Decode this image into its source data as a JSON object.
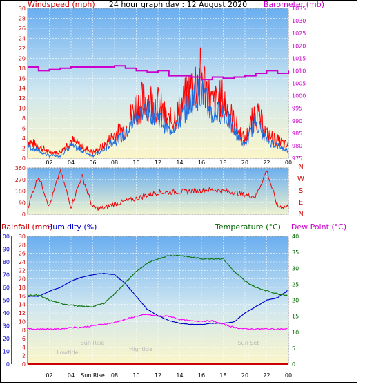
{
  "header": {
    "title": "24 hour graph day : 12 August 2020",
    "left_label": "Windspeed (mph)",
    "right_label": "Barometer (mb)"
  },
  "bottom_header": {
    "rainfall_label": "Rainfall (mm)",
    "humidity_label": "Humidity (%)",
    "temperature_label": "Temperature (°C)",
    "dewpoint_label": "Dew Point (°C)"
  },
  "colors": {
    "wind_axis": "#cc0000",
    "barometer": "#cc00cc",
    "humidity": "#0000cc",
    "temperature": "#006600",
    "wind_gust": "#ff0000",
    "wind_avg": "#1e6fe0",
    "dewpoint": "#ff00ff"
  },
  "chart_data": [
    {
      "type": "line",
      "title": "24 hour graph day : 12 August 2020",
      "xlabel": "",
      "ylabel": "Windspeed (mph)",
      "y2label": "Barometer (mb)",
      "x_ticks": [
        "02",
        "04",
        "06",
        "08",
        "10",
        "12",
        "14",
        "16",
        "18",
        "20",
        "22",
        "00"
      ],
      "ylim": [
        0,
        30
      ],
      "y_ticks": [
        0,
        2,
        4,
        6,
        8,
        10,
        12,
        14,
        16,
        18,
        20,
        22,
        24,
        26,
        28,
        30
      ],
      "y2lim": [
        975,
        1035
      ],
      "y2_ticks": [
        975,
        980,
        985,
        990,
        995,
        1000,
        1005,
        1010,
        1015,
        1020,
        1025,
        1030,
        1035
      ],
      "grid": true,
      "hours": [
        0,
        1,
        2,
        3,
        4,
        5,
        6,
        7,
        8,
        9,
        10,
        11,
        12,
        13,
        14,
        15,
        16,
        17,
        18,
        19,
        20,
        21,
        22,
        23,
        24
      ],
      "series": [
        {
          "name": "Windspeed (mph)",
          "values": [
            3,
            2,
            1,
            1,
            3,
            2,
            1,
            2,
            4,
            5,
            9,
            10,
            9,
            6,
            8,
            12,
            14,
            9,
            10,
            6,
            3,
            8,
            4,
            3,
            2
          ]
        },
        {
          "name": "Barometer (mb)",
          "values": [
            1011.5,
            1010,
            1010.5,
            1011,
            1011.5,
            1011.5,
            1011.5,
            1011.5,
            1012,
            1011,
            1010,
            1009.5,
            1010,
            1008,
            1008,
            1007.5,
            1006.5,
            1007.5,
            1007,
            1007.5,
            1008,
            1009,
            1010,
            1009,
            1010
          ]
        }
      ]
    },
    {
      "type": "scatter",
      "title": "",
      "ylabel": "",
      "ylim": [
        0,
        360
      ],
      "y_ticks": [
        0,
        90,
        180,
        270,
        360
      ],
      "compass_labels": [
        "N",
        "W",
        "S",
        "E",
        "N"
      ],
      "x_ticks": [
        "02",
        "04",
        "06",
        "08",
        "10",
        "12",
        "14",
        "16",
        "18",
        "20",
        "22",
        "00"
      ],
      "hours": [
        0,
        1,
        2,
        3,
        4,
        5,
        6,
        7,
        8,
        9,
        10,
        11,
        12,
        13,
        14,
        15,
        16,
        17,
        18,
        19,
        20,
        21,
        22,
        23,
        24
      ],
      "series": [
        {
          "name": "",
          "values": [
            50,
            300,
            60,
            340,
            60,
            300,
            50,
            45,
            80,
            100,
            120,
            150,
            170,
            170,
            175,
            180,
            185,
            190,
            180,
            170,
            150,
            140,
            340,
            60,
            60
          ]
        }
      ]
    },
    {
      "type": "line",
      "title": "",
      "x_ticks": [
        "02",
        "04",
        "Sun Rise",
        "08",
        "10",
        "12",
        "14",
        "16",
        "18",
        "20",
        "22",
        "00"
      ],
      "humidity_axis": {
        "ylim": [
          0,
          100
        ],
        "y_ticks": [
          0,
          10,
          20,
          30,
          40,
          50,
          60,
          70,
          80,
          90,
          100
        ]
      },
      "rainfall_axis": {
        "ylim": [
          0,
          30
        ],
        "y_ticks": [
          0,
          2,
          4,
          6,
          8,
          10,
          12,
          14,
          16,
          18,
          20,
          22,
          24,
          26,
          28,
          30
        ]
      },
      "temperature_axis": {
        "ylim": [
          0,
          40
        ],
        "y_ticks": [
          0,
          5,
          10,
          15,
          20,
          25,
          30,
          35,
          40
        ]
      },
      "annotations": [
        "Lowtide",
        "Sun Rise",
        "Hightide",
        "Sun Set"
      ],
      "hours": [
        0,
        1,
        2,
        3,
        4,
        5,
        6,
        7,
        8,
        9,
        10,
        11,
        12,
        13,
        14,
        15,
        16,
        17,
        18,
        19,
        20,
        21,
        22,
        23,
        24
      ],
      "series": [
        {
          "name": "Humidity (%)",
          "values": [
            53,
            53,
            57,
            60,
            65,
            68,
            70,
            71,
            70,
            63,
            53,
            43,
            38,
            34,
            32,
            31,
            31,
            32,
            32,
            33,
            40,
            45,
            50,
            52,
            58
          ]
        },
        {
          "name": "Temperature (°C)",
          "values": [
            21.5,
            21.5,
            20,
            19,
            18.5,
            18,
            18,
            19,
            22,
            25.5,
            29,
            31.5,
            33,
            34,
            34,
            33.5,
            33,
            33,
            33,
            29,
            26,
            24,
            23,
            22,
            21.5
          ]
        },
        {
          "name": "Dew Point (°C)",
          "values": [
            11,
            11,
            11,
            11,
            11.5,
            11.5,
            12,
            12.5,
            13,
            14,
            15,
            15.5,
            15,
            15,
            14,
            13.5,
            13.5,
            13.5,
            12.5,
            11.5,
            11,
            11,
            11,
            11,
            11
          ]
        },
        {
          "name": "Rainfall (mm)",
          "values": [
            0,
            0,
            0,
            0,
            0,
            0,
            0,
            0,
            0,
            0,
            0,
            0,
            0,
            0,
            0,
            0,
            0,
            0,
            0,
            0,
            0,
            0,
            0,
            0,
            0
          ]
        }
      ]
    }
  ]
}
